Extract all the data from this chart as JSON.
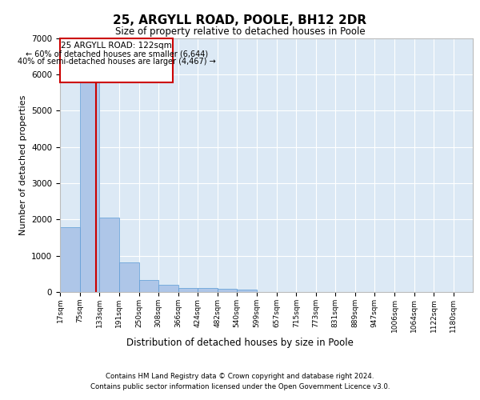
{
  "title": "25, ARGYLL ROAD, POOLE, BH12 2DR",
  "subtitle": "Size of property relative to detached houses in Poole",
  "xlabel": "Distribution of detached houses by size in Poole",
  "ylabel": "Number of detached properties",
  "footer_line1": "Contains HM Land Registry data © Crown copyright and database right 2024.",
  "footer_line2": "Contains public sector information licensed under the Open Government Licence v3.0.",
  "annotation_line1": "25 ARGYLL ROAD: 122sqm",
  "annotation_line2": "← 60% of detached houses are smaller (6,644)",
  "annotation_line3": "40% of semi-detached houses are larger (4,467) →",
  "property_size": 122,
  "bar_edges": [
    17,
    75,
    133,
    191,
    250,
    308,
    366,
    424,
    482,
    540,
    599,
    657,
    715,
    773,
    831,
    889,
    947,
    1006,
    1064,
    1122,
    1180
  ],
  "bar_values": [
    1780,
    5780,
    2060,
    820,
    340,
    190,
    110,
    100,
    90,
    70,
    0,
    0,
    0,
    0,
    0,
    0,
    0,
    0,
    0,
    0
  ],
  "bar_color": "#aec6e8",
  "bar_edge_color": "#5b9bd5",
  "red_line_color": "#cc0000",
  "annotation_box_color": "#cc0000",
  "background_color": "#dce9f5",
  "grid_color": "#ffffff",
  "ylim": [
    0,
    7000
  ],
  "yticks": [
    0,
    1000,
    2000,
    3000,
    4000,
    5000,
    6000,
    7000
  ]
}
